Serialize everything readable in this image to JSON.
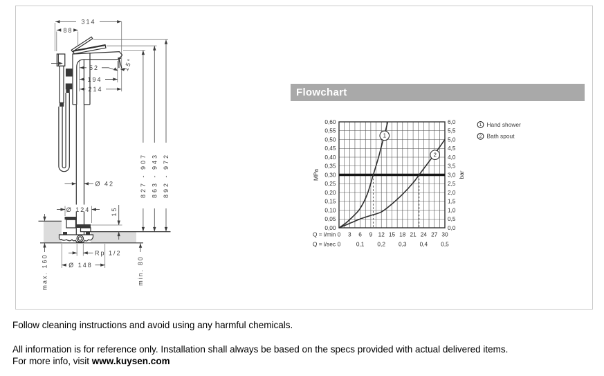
{
  "drawing": {
    "dim_width_total": "314",
    "dim_handle": "88",
    "dim_spout_52": "52",
    "dim_spout_194": "194",
    "dim_spout_214": "214",
    "dim_angle": "15°",
    "dim_height_spout": "827 - 907",
    "dim_height_handle_closed": "863 - 943",
    "dim_height_handle_open": "892 - 972",
    "dim_pipe": "Ø 42",
    "dim_base": "Ø 124",
    "dim_offset": "15",
    "dim_flange": "Ø 148",
    "dim_thread": "Rp 1/2",
    "dim_below_left": "max. 160",
    "dim_below_right": "min. 80"
  },
  "flowchart": {
    "title": "Flowchart"
  },
  "chart_data": {
    "type": "line",
    "title": "Flowchart",
    "x_axis": {
      "label_lmin": "Q = l/min",
      "ticks_lmin": [
        "0",
        "3",
        "6",
        "9",
        "12",
        "15",
        "18",
        "21",
        "24",
        "27",
        "30"
      ],
      "label_lsec": "Q = l/sec",
      "ticks_lsec": [
        "0",
        "0,1",
        "0,2",
        "0,3",
        "0,4",
        "0,5"
      ],
      "range_lmin": [
        0,
        30
      ]
    },
    "y_axis_left": {
      "label": "MPa",
      "ticks": [
        "0,00",
        "0,05",
        "0,10",
        "0,15",
        "0,20",
        "0,25",
        "0,30",
        "0,35",
        "0,40",
        "0,45",
        "0,50",
        "0,55",
        "0,60"
      ],
      "range": [
        0,
        0.6
      ]
    },
    "y_axis_right": {
      "label": "bar",
      "ticks": [
        "0,0",
        "0,5",
        "1,0",
        "1,5",
        "2,0",
        "2,5",
        "3,0",
        "3,5",
        "4,0",
        "4,5",
        "5,0",
        "5,5",
        "6,0"
      ]
    },
    "reference_line_mpa": 0.3,
    "dashed_crossings_lmin": [
      9.7,
      22.7
    ],
    "series": [
      {
        "id": "1",
        "name": "Hand shower",
        "points": [
          [
            0,
            0
          ],
          [
            2,
            0.028
          ],
          [
            4,
            0.065
          ],
          [
            6,
            0.11
          ],
          [
            8,
            0.19
          ],
          [
            9.7,
            0.3
          ],
          [
            11,
            0.385
          ],
          [
            12,
            0.46
          ],
          [
            13,
            0.535
          ],
          [
            13.8,
            0.6
          ]
        ],
        "marker_at": [
          12.9,
          0.522
        ]
      },
      {
        "id": "2",
        "name": "Bath spout",
        "points": [
          [
            0,
            0
          ],
          [
            3,
            0.025
          ],
          [
            6,
            0.05
          ],
          [
            9,
            0.07
          ],
          [
            12,
            0.09
          ],
          [
            15,
            0.135
          ],
          [
            18,
            0.19
          ],
          [
            21,
            0.255
          ],
          [
            22.7,
            0.3
          ],
          [
            24,
            0.335
          ],
          [
            27,
            0.415
          ],
          [
            30,
            0.5
          ]
        ],
        "marker_at": [
          27.2,
          0.413
        ]
      }
    ]
  },
  "footer": {
    "line1": "Follow cleaning instructions and avoid using any harmful chemicals.",
    "line2": "All information is for reference only. Installation shall always be based on the specs provided with actual delivered items.",
    "line3_prefix": "For more info, visit ",
    "line3_bold": "www.kuysen.com"
  }
}
